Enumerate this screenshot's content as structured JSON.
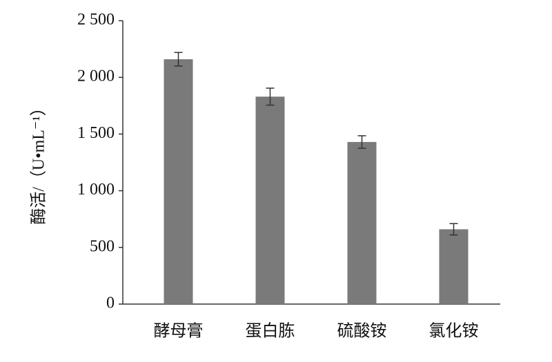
{
  "chart_data": {
    "type": "bar",
    "categories": [
      "酵母膏",
      "蛋白胨",
      "硫酸铵",
      "氯化铵"
    ],
    "values": [
      2160,
      1830,
      1430,
      660
    ],
    "errors": [
      60,
      75,
      55,
      50
    ],
    "color": "#7a7a7a",
    "y_label": "酶活/（U•mL⁻¹）",
    "ylim": [
      0,
      2500
    ],
    "yticks": [
      0,
      500,
      {
        "value": 1000,
        "label": "1 000"
      },
      {
        "value": 1500,
        "label": "1 500"
      },
      {
        "value": 2000,
        "label": "2 000"
      },
      {
        "value": 2500,
        "label": "2 500"
      }
    ],
    "grid": false
  }
}
